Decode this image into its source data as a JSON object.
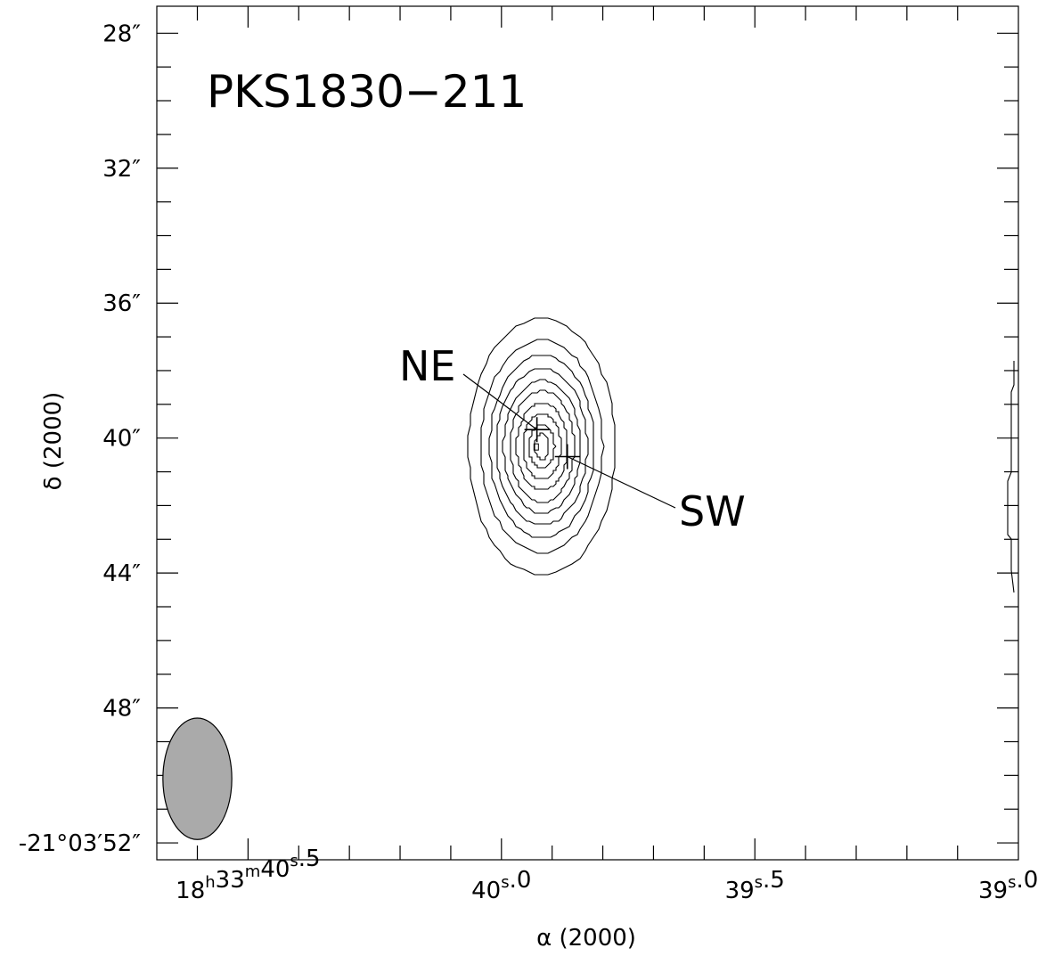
{
  "chart_data": {
    "type": "contour",
    "title": "PKS1830−211",
    "xlabel": "α (2000)",
    "ylabel": "δ (2000)",
    "x_ticks": [
      {
        "sec": 40.5,
        "label_h": "18",
        "label_m": "33",
        "label_s": "40",
        "label_frac": "5",
        "full": true
      },
      {
        "sec": 40.0,
        "label_s": "40",
        "label_frac": "0",
        "full": false
      },
      {
        "sec": 39.5,
        "label_s": "39",
        "label_frac": "5",
        "full": false
      },
      {
        "sec": 39.0,
        "label_s": "39",
        "label_frac": "0",
        "full": false
      }
    ],
    "y_ticks": [
      {
        "arcsec": 28,
        "label": "28″"
      },
      {
        "arcsec": 32,
        "label": "32″"
      },
      {
        "arcsec": 36,
        "label": "36″"
      },
      {
        "arcsec": 40,
        "label": "40″"
      },
      {
        "arcsec": 44,
        "label": "44″"
      },
      {
        "arcsec": 48,
        "label": "48″"
      },
      {
        "arcsec": 52,
        "label": "-21°03′52″"
      }
    ],
    "ra_range_sec": [
      40.68,
      38.98
    ],
    "dec_range_arcsec": [
      27.2,
      52.5
    ],
    "contours": {
      "center_ra_sec": 39.92,
      "center_dec_arcsec": 40.25,
      "semi_minor_levels_sec": [
        0.145,
        0.12,
        0.103,
        0.089,
        0.076,
        0.063,
        0.05,
        0.037,
        0.025,
        0.014
      ],
      "semi_major_levels_arcsec": [
        3.8,
        3.15,
        2.7,
        2.32,
        1.97,
        1.65,
        1.3,
        0.97,
        0.65,
        0.38
      ]
    },
    "components": [
      {
        "name": "NE",
        "ra_sec": 39.93,
        "dec_arcsec": 39.75
      },
      {
        "name": "SW",
        "ra_sec": 39.87,
        "dec_arcsec": 40.55
      }
    ],
    "beam": {
      "ra_sec": 40.6,
      "dec_arcsec": 50.1,
      "semi_minor_sec": 0.068,
      "semi_major_arcsec": 1.8
    },
    "beam_fill": "#aaaaaa",
    "line_color": "#000000"
  }
}
